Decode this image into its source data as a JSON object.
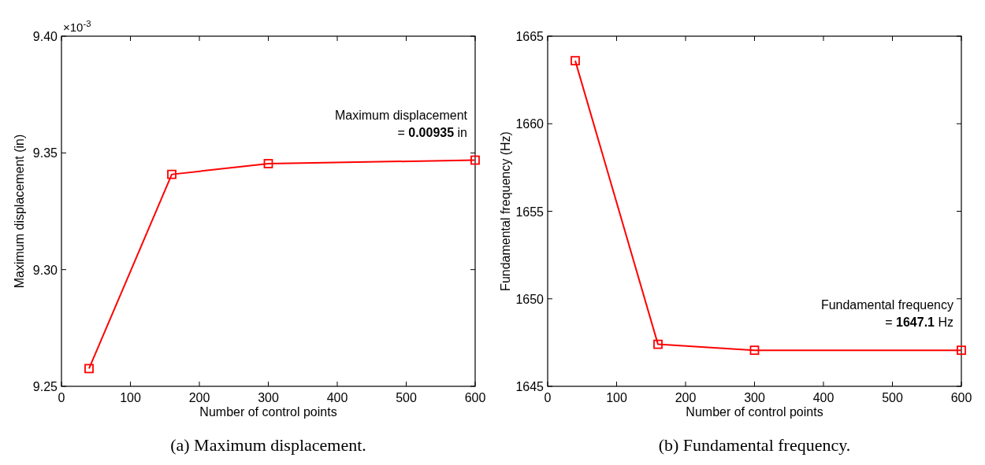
{
  "chart_data": [
    {
      "type": "line",
      "title": "(a) Maximum displacement.",
      "xlabel": "Number of control points",
      "ylabel": "Maximum displacement (in)",
      "annotations": [
        "×10$^{-3}$",
        "Maximum displacement\n= 0.00935 in"
      ],
      "x": [
        40,
        160,
        300,
        600
      ],
      "series": [
        {
          "color": "#ff0000",
          "values": [
            9.2576,
            9.3408,
            9.3454,
            9.3469
          ]
        }
      ],
      "xlim": [
        0,
        600
      ],
      "xticks": [
        0,
        100,
        200,
        300,
        400,
        500,
        600
      ],
      "ylim": [
        9.25,
        9.4
      ],
      "yticks": [
        {
          "value": 9.25,
          "label": "9.25"
        },
        {
          "value": 9.3,
          "label": "9.30"
        },
        {
          "value": 9.35,
          "label": "9.35"
        },
        {
          "value": 9.4,
          "label": "9.40"
        }
      ],
      "marker": "square",
      "line_style": "solid"
    },
    {
      "type": "line",
      "title": "(b) Fundamental frequency.",
      "xlabel": "Number of control points",
      "ylabel": "Fundamental frequency (Hz)",
      "annotations": [
        "Fundamental frequency\n= 1647.1 Hz"
      ],
      "x": [
        40,
        160,
        300,
        600
      ],
      "series": [
        {
          "color": "#ff0000",
          "values": [
            1663.6,
            1647.4,
            1647.06,
            1647.06
          ]
        }
      ],
      "xlim": [
        0,
        600
      ],
      "xticks": [
        0,
        100,
        200,
        300,
        400,
        500,
        600
      ],
      "ylim": [
        1645,
        1665
      ],
      "yticks": [
        1645,
        1650,
        1655,
        1660,
        1665
      ],
      "marker": "square",
      "line_style": "solid"
    }
  ]
}
